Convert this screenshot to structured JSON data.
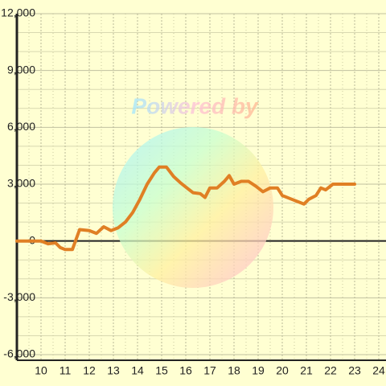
{
  "chart_data": {
    "type": "line",
    "watermark": "Powered by",
    "x": [
      9.0,
      10.0,
      10.3,
      10.6,
      10.8,
      11.0,
      11.3,
      11.6,
      12.0,
      12.3,
      12.6,
      12.9,
      13.2,
      13.5,
      13.8,
      14.1,
      14.4,
      14.7,
      14.9,
      15.2,
      15.5,
      15.8,
      16.1,
      16.3,
      16.6,
      16.8,
      17.0,
      17.3,
      17.6,
      17.8,
      18.0,
      18.3,
      18.6,
      18.9,
      19.2,
      19.5,
      19.8,
      20.0,
      20.3,
      20.6,
      20.9,
      21.1,
      21.4,
      21.6,
      21.8,
      22.1,
      22.5,
      23.0
    ],
    "series": [
      {
        "color": "#e07f24",
        "values": [
          0,
          0,
          -150,
          -100,
          -350,
          -450,
          -450,
          600,
          550,
          400,
          750,
          550,
          700,
          1000,
          1500,
          2200,
          3000,
          3600,
          3900,
          3900,
          3400,
          3050,
          2750,
          2550,
          2500,
          2300,
          2800,
          2800,
          3150,
          3450,
          3000,
          3150,
          3150,
          2900,
          2600,
          2800,
          2800,
          2400,
          2250,
          2100,
          1950,
          2200,
          2400,
          2800,
          2700,
          3000,
          3000,
          3000
        ]
      }
    ],
    "xlim": [
      9,
      24.3
    ],
    "xticks": [
      10,
      11,
      12,
      13,
      14,
      15,
      16,
      17,
      18,
      19,
      20,
      21,
      22,
      23,
      24
    ],
    "x_minor_ticks": [
      9.5,
      10.5,
      11.5,
      12.5,
      13.5,
      14.5,
      15.5,
      16.5,
      17.5,
      18.5,
      19.5,
      20.5,
      21.5,
      22.5,
      23.5
    ],
    "ylim": [
      -6000,
      12000
    ],
    "yticks": [
      {
        "value": -6000,
        "label": "-6,000"
      },
      {
        "value": -3000,
        "label": "-3,000"
      },
      0,
      {
        "value": 3000,
        "label": "3,000"
      },
      {
        "value": 6000,
        "label": "6,000"
      },
      {
        "value": 9000,
        "label": "9,000"
      },
      {
        "value": 12000,
        "label": "12,000"
      }
    ],
    "y_minor_ticks": [
      -5000,
      -4000,
      -2000,
      -1000,
      1000,
      2000,
      4000,
      5000,
      7000,
      8000,
      10000,
      11000
    ],
    "grid": true
  }
}
